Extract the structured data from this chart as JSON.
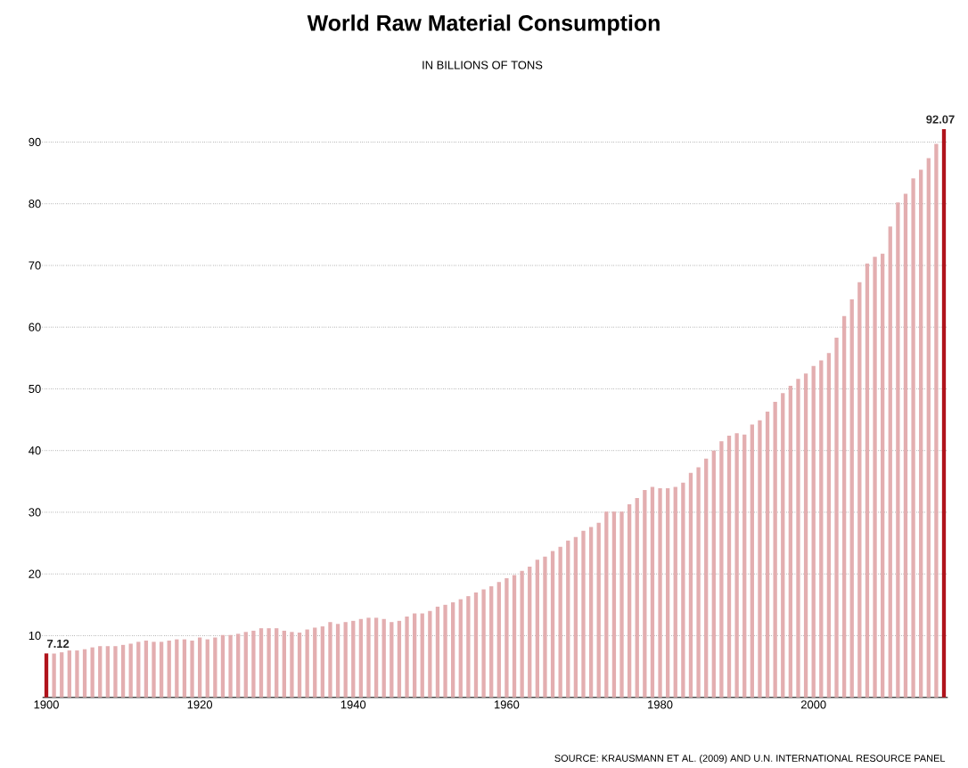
{
  "chart_data": {
    "type": "bar",
    "title": "World Raw Material Consumption",
    "subtitle": "IN BILLIONS OF TONS",
    "x": [
      1900,
      1901,
      1902,
      1903,
      1904,
      1905,
      1906,
      1907,
      1908,
      1909,
      1910,
      1911,
      1912,
      1913,
      1914,
      1915,
      1916,
      1917,
      1918,
      1919,
      1920,
      1921,
      1922,
      1923,
      1924,
      1925,
      1926,
      1927,
      1928,
      1929,
      1930,
      1931,
      1932,
      1933,
      1934,
      1935,
      1936,
      1937,
      1938,
      1939,
      1940,
      1941,
      1942,
      1943,
      1944,
      1945,
      1946,
      1947,
      1948,
      1949,
      1950,
      1951,
      1952,
      1953,
      1954,
      1955,
      1956,
      1957,
      1958,
      1959,
      1960,
      1961,
      1962,
      1963,
      1964,
      1965,
      1966,
      1967,
      1968,
      1969,
      1970,
      1971,
      1972,
      1973,
      1974,
      1975,
      1976,
      1977,
      1978,
      1979,
      1980,
      1981,
      1982,
      1983,
      1984,
      1985,
      1986,
      1987,
      1988,
      1989,
      1990,
      1991,
      1992,
      1993,
      1994,
      1995,
      1996,
      1997,
      1998,
      1999,
      2000,
      2001,
      2002,
      2003,
      2004,
      2005,
      2006,
      2007,
      2008,
      2009,
      2010,
      2011,
      2012,
      2013,
      2014,
      2015,
      2016,
      2017
    ],
    "values": [
      7.12,
      7.1,
      7.3,
      7.6,
      7.6,
      7.8,
      8.1,
      8.3,
      8.3,
      8.3,
      8.5,
      8.7,
      9.0,
      9.2,
      9.0,
      9.0,
      9.2,
      9.4,
      9.4,
      9.2,
      9.7,
      9.4,
      9.7,
      10.1,
      10.1,
      10.3,
      10.6,
      10.8,
      11.2,
      11.2,
      11.2,
      10.8,
      10.6,
      10.5,
      11.0,
      11.3,
      11.5,
      12.2,
      11.9,
      12.2,
      12.4,
      12.7,
      12.9,
      12.9,
      12.7,
      12.2,
      12.4,
      13.1,
      13.6,
      13.6,
      14.0,
      14.7,
      15.0,
      15.4,
      15.9,
      16.4,
      17.0,
      17.5,
      18.0,
      18.7,
      19.3,
      19.8,
      20.5,
      21.2,
      22.3,
      22.8,
      23.7,
      24.4,
      25.4,
      26.0,
      27.0,
      27.6,
      28.3,
      30.1,
      30.1,
      30.1,
      31.3,
      32.3,
      33.6,
      34.1,
      33.9,
      33.9,
      34.1,
      34.8,
      36.4,
      37.3,
      38.7,
      40.0,
      41.5,
      42.4,
      42.8,
      42.6,
      44.2,
      44.9,
      46.3,
      47.9,
      49.3,
      50.5,
      51.6,
      52.5,
      53.7,
      54.6,
      55.8,
      58.3,
      61.8,
      64.5,
      67.3,
      70.3,
      71.4,
      71.9,
      76.3,
      80.2,
      81.6,
      84.1,
      85.5,
      87.4,
      89.7,
      92.07
    ],
    "colors": [
      "#b0141c",
      "#e3aeb0",
      "#e3aeb0",
      "#e3aeb0",
      "#e3aeb0",
      "#e3aeb0",
      "#e3aeb0",
      "#e3aeb0",
      "#e3aeb0",
      "#e3aeb0",
      "#e3aeb0",
      "#e3aeb0",
      "#e3aeb0",
      "#e3aeb0",
      "#e3aeb0",
      "#e3aeb0",
      "#e3aeb0",
      "#e3aeb0",
      "#e3aeb0",
      "#e3aeb0",
      "#e3aeb0",
      "#e3aeb0",
      "#e3aeb0",
      "#e3aeb0",
      "#e3aeb0",
      "#e3aeb0",
      "#e3aeb0",
      "#e3aeb0",
      "#e3aeb0",
      "#e3aeb0",
      "#e3aeb0",
      "#e3aeb0",
      "#e3aeb0",
      "#e3aeb0",
      "#e3aeb0",
      "#e3aeb0",
      "#e3aeb0",
      "#e3aeb0",
      "#e3aeb0",
      "#e3aeb0",
      "#e3aeb0",
      "#e3aeb0",
      "#e3aeb0",
      "#e3aeb0",
      "#e3aeb0",
      "#e3aeb0",
      "#e3aeb0",
      "#e3aeb0",
      "#e3aeb0",
      "#e3aeb0",
      "#e3aeb0",
      "#e3aeb0",
      "#e3aeb0",
      "#e3aeb0",
      "#e3aeb0",
      "#e3aeb0",
      "#e3aeb0",
      "#e3aeb0",
      "#e3aeb0",
      "#e3aeb0",
      "#e3aeb0",
      "#e3aeb0",
      "#e3aeb0",
      "#e3aeb0",
      "#e3aeb0",
      "#e3aeb0",
      "#e3aeb0",
      "#e3aeb0",
      "#e3aeb0",
      "#e3aeb0",
      "#e3aeb0",
      "#e3aeb0",
      "#e3aeb0",
      "#e3aeb0",
      "#e3aeb0",
      "#e3aeb0",
      "#e3aeb0",
      "#e3aeb0",
      "#e3aeb0",
      "#e3aeb0",
      "#e3aeb0",
      "#e3aeb0",
      "#e3aeb0",
      "#e3aeb0",
      "#e3aeb0",
      "#e3aeb0",
      "#e3aeb0",
      "#e3aeb0",
      "#e3aeb0",
      "#e3aeb0",
      "#e3aeb0",
      "#e3aeb0",
      "#e3aeb0",
      "#e3aeb0",
      "#e3aeb0",
      "#e3aeb0",
      "#e3aeb0",
      "#e3aeb0",
      "#e3aeb0",
      "#e3aeb0",
      "#e3aeb0",
      "#e3aeb0",
      "#e3aeb0",
      "#e3aeb0",
      "#e3aeb0",
      "#e3aeb0",
      "#e3aeb0",
      "#e3aeb0",
      "#e3aeb0",
      "#e3aeb0",
      "#e3aeb0",
      "#e3aeb0",
      "#e3aeb0",
      "#e3aeb0",
      "#e3aeb0",
      "#e3aeb0",
      "#e3aeb0",
      "#b0141c"
    ],
    "value_labels": [
      "7.12",
      null,
      null,
      null,
      null,
      null,
      null,
      null,
      null,
      null,
      null,
      null,
      null,
      null,
      null,
      null,
      null,
      null,
      null,
      null,
      null,
      null,
      null,
      null,
      null,
      null,
      null,
      null,
      null,
      null,
      null,
      null,
      null,
      null,
      null,
      null,
      null,
      null,
      null,
      null,
      null,
      null,
      null,
      null,
      null,
      null,
      null,
      null,
      null,
      null,
      null,
      null,
      null,
      null,
      null,
      null,
      null,
      null,
      null,
      null,
      null,
      null,
      null,
      null,
      null,
      null,
      null,
      null,
      null,
      null,
      null,
      null,
      null,
      null,
      null,
      null,
      null,
      null,
      null,
      null,
      null,
      null,
      null,
      null,
      null,
      null,
      null,
      null,
      null,
      null,
      null,
      null,
      null,
      null,
      null,
      null,
      null,
      null,
      null,
      null,
      null,
      null,
      null,
      null,
      null,
      null,
      null,
      null,
      null,
      null,
      null,
      null,
      null,
      null,
      null,
      null,
      null,
      "92.07"
    ],
    "xlim": [
      1899.5,
      2017.5
    ],
    "ylim": [
      0,
      92.07
    ],
    "xticks": [
      1900,
      1920,
      1940,
      1960,
      1980,
      2000
    ],
    "yticks": [
      10,
      20,
      30,
      40,
      50,
      60,
      70,
      80,
      90
    ],
    "grid": "y",
    "annotations": [
      "SOURCE: KRAUSMANN ET AL. (2009) AND U.N. INTERNATIONAL RESOURCE PANEL"
    ]
  }
}
